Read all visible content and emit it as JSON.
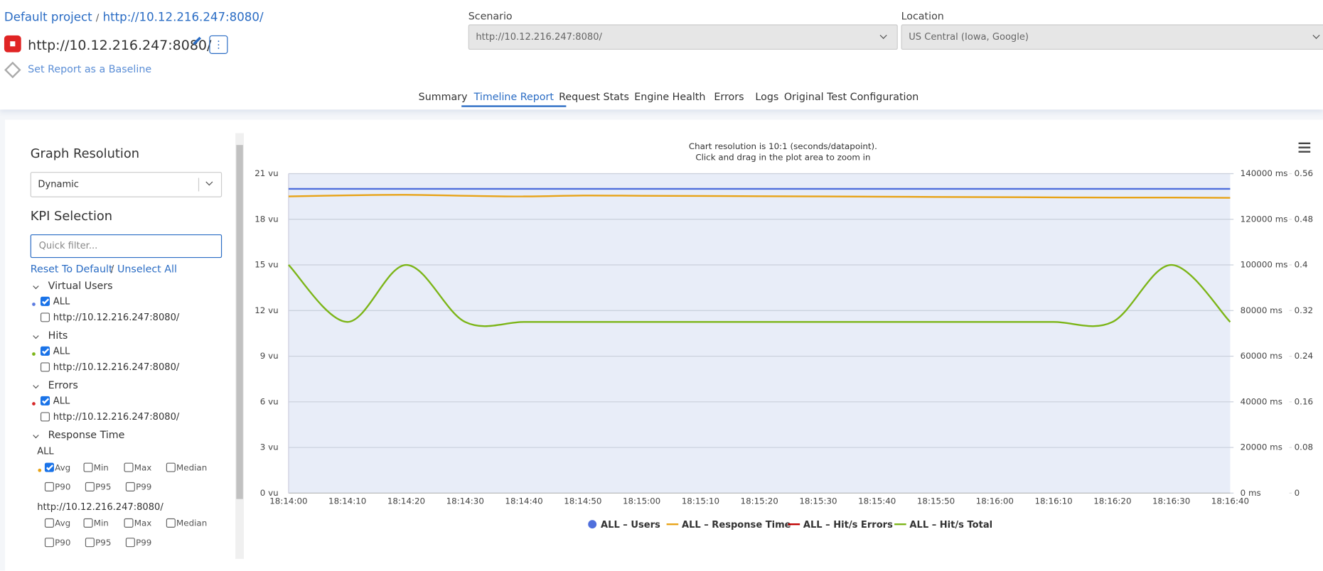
{
  "header": {
    "breadcrumb_project": "Default project",
    "breadcrumb_sep": "/",
    "breadcrumb_url": "http://10.12.216.247:8080/",
    "title": "http://10.12.216.247:8080/",
    "baseline": "Set Report as a Baseline"
  },
  "scenario": {
    "label": "Scenario",
    "value": "http://10.12.216.247:8080/"
  },
  "location": {
    "label": "Location",
    "value": "US Central (Iowa, Google)"
  },
  "tabs": {
    "items": [
      "Summary",
      "Timeline Report",
      "Request Stats",
      "Engine Health",
      "Errors",
      "Logs",
      "Original Test Configuration"
    ],
    "active": 1
  },
  "sidebar": {
    "resolution_title": "Graph Resolution",
    "resolution": "Dynamic",
    "kpi_title": "KPI Selection",
    "filter_placeholder": "Quick filter...",
    "reset": "Reset To Default",
    "sep": "/",
    "unselect": "Unselect All",
    "groups": [
      {
        "name": "Virtual Users",
        "items": [
          {
            "label": "ALL",
            "checked": true,
            "color": "#5b7be0"
          },
          {
            "label": "http://10.12.216.247:8080/",
            "checked": false
          }
        ]
      },
      {
        "name": "Hits",
        "items": [
          {
            "label": "ALL",
            "checked": true,
            "color": "#7cb518"
          },
          {
            "label": "http://10.12.216.247:8080/",
            "checked": false
          }
        ]
      },
      {
        "name": "Errors",
        "items": [
          {
            "label": "ALL",
            "checked": true,
            "color": "#d62728"
          },
          {
            "label": "http://10.12.216.247:8080/",
            "checked": false
          }
        ]
      }
    ],
    "response_time": {
      "name": "Response Time",
      "subgroups": [
        {
          "name": "ALL",
          "color": "#e8a317",
          "options": [
            {
              "label": "Avg",
              "checked": true
            },
            {
              "label": "Min",
              "checked": false
            },
            {
              "label": "Max",
              "checked": false
            },
            {
              "label": "Median",
              "checked": false
            },
            {
              "label": "P90",
              "checked": false
            },
            {
              "label": "P95",
              "checked": false
            },
            {
              "label": "P99",
              "checked": false
            }
          ]
        },
        {
          "name": "http://10.12.216.247:8080/",
          "options": [
            {
              "label": "Avg",
              "checked": false
            },
            {
              "label": "Min",
              "checked": false
            },
            {
              "label": "Max",
              "checked": false
            },
            {
              "label": "Median",
              "checked": false
            },
            {
              "label": "P90",
              "checked": false
            },
            {
              "label": "P95",
              "checked": false
            },
            {
              "label": "P99",
              "checked": false
            }
          ]
        }
      ]
    }
  },
  "chart_data": {
    "type": "line",
    "title": "Chart resolution is 10:1 (seconds/datapoint).",
    "subtitle": "Click and drag in the plot area to zoom in",
    "categories": [
      "18:14:00",
      "18:14:10",
      "18:14:20",
      "18:14:30",
      "18:14:40",
      "18:14:50",
      "18:15:00",
      "18:15:10",
      "18:15:20",
      "18:15:30",
      "18:15:40",
      "18:15:50",
      "18:16:00",
      "18:16:10",
      "18:16:20",
      "18:16:30",
      "18:16:40"
    ],
    "ylim": [
      0,
      21
    ],
    "yticks": [
      {
        "value": 0,
        "label": "0 vu"
      },
      {
        "value": 3,
        "label": "3 vu"
      },
      {
        "value": 6,
        "label": "6 vu"
      },
      {
        "value": 9,
        "label": "9 vu"
      },
      {
        "value": 12,
        "label": "12 vu"
      },
      {
        "value": 15,
        "label": "15 vu"
      },
      {
        "value": 18,
        "label": "18 vu"
      },
      {
        "value": 21,
        "label": "21 vu"
      }
    ],
    "y2lim": [
      0,
      140000
    ],
    "y2ticks": [
      {
        "value": 0,
        "label": "0 ms"
      },
      {
        "value": 20000,
        "label": "20000 ms"
      },
      {
        "value": 40000,
        "label": "40000 ms"
      },
      {
        "value": 60000,
        "label": "60000 ms"
      },
      {
        "value": 80000,
        "label": "80000 ms"
      },
      {
        "value": 100000,
        "label": "100000 ms"
      },
      {
        "value": 120000,
        "label": "120000 ms"
      },
      {
        "value": 140000,
        "label": "140000 ms"
      }
    ],
    "y3lim": [
      0,
      0.56
    ],
    "y3ticks": [
      0,
      0.08,
      0.16,
      0.24,
      0.32,
      0.4,
      0.48,
      0.56
    ],
    "grid": true,
    "legend": "bottom",
    "series": [
      {
        "name": "ALL – Users",
        "color": "#4f6fdc",
        "marker": "circle",
        "values": [
          20,
          20,
          20,
          20,
          20,
          20,
          20,
          20,
          20,
          20,
          20,
          20,
          20,
          20,
          20,
          20,
          20
        ]
      },
      {
        "name": "ALL – Response Time",
        "color": "#e8a317",
        "axis": "y2",
        "values": [
          130000,
          130500,
          130700,
          130300,
          130000,
          130400,
          130300,
          130200,
          130100,
          130000,
          129900,
          129800,
          129700,
          129600,
          129500,
          129500,
          129400
        ]
      },
      {
        "name": "ALL – Hit/s Errors",
        "color": "#c00000",
        "axis": "y3",
        "values": [
          null,
          null,
          null,
          null,
          null,
          null,
          null,
          null,
          null,
          null,
          null,
          null,
          null,
          null,
          null,
          null,
          null
        ]
      },
      {
        "name": "ALL – Hit/s Total",
        "color": "#7cb518",
        "axis": "y3",
        "values": [
          0.4,
          0.3,
          0.4,
          0.3,
          0.3,
          0.3,
          0.3,
          0.3,
          0.3,
          0.3,
          0.3,
          0.3,
          0.3,
          0.3,
          0.3,
          0.4,
          0.3
        ]
      }
    ]
  }
}
